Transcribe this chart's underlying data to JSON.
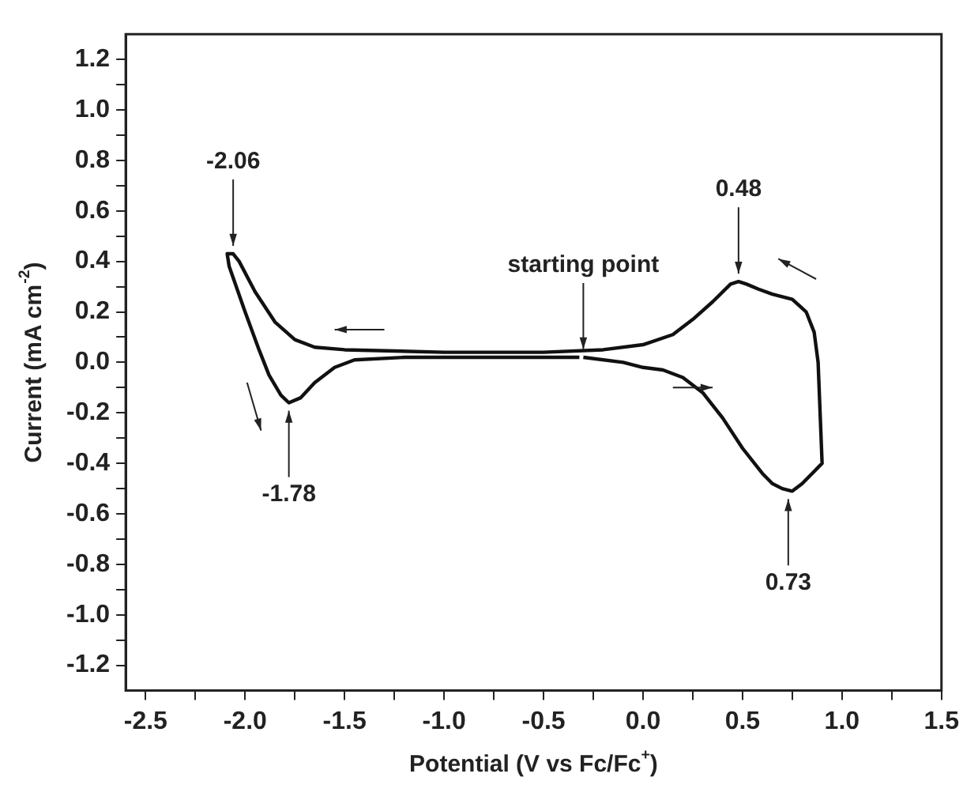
{
  "chart_data": {
    "type": "line",
    "xlabel": "Potential (V vs Fc/Fc$^{+}$)",
    "ylabel": "Current (mA cm$^{-2}$)",
    "xlim": [
      -2.6,
      1.5
    ],
    "xticks": [
      -2.5,
      {
        "value": -2.25,
        "label": null
      },
      {
        "value": -2,
        "label": "-2.0"
      },
      {
        "value": -1.75,
        "label": null
      },
      -1.5,
      {
        "value": -1.25,
        "label": null
      },
      {
        "value": -1,
        "label": "-1.0"
      },
      {
        "value": -0.75,
        "label": null
      },
      -0.5,
      {
        "value": -0.25,
        "label": null
      },
      {
        "value": 0,
        "label": "0.0"
      },
      {
        "value": 0.25,
        "label": null
      },
      0.5,
      {
        "value": 0.75,
        "label": null
      },
      {
        "value": 1,
        "label": "1.0"
      },
      {
        "value": 1.25,
        "label": null
      },
      1.5
    ],
    "ylim": [
      -1.3,
      1.3
    ],
    "yticks": [
      -1.2,
      {
        "value": -1.1,
        "label": null
      },
      {
        "value": -1,
        "label": "-1.0"
      },
      {
        "value": -0.9,
        "label": null
      },
      -0.8,
      {
        "value": -0.7,
        "label": null
      },
      -0.6,
      {
        "value": -0.5,
        "label": null
      },
      -0.4,
      {
        "value": -0.3,
        "label": null
      },
      -0.2,
      {
        "value": -0.1,
        "label": null
      },
      {
        "value": 0,
        "label": "0.0"
      },
      {
        "value": 0.1,
        "label": null
      },
      0.2,
      {
        "value": 0.3,
        "label": null
      },
      0.4,
      {
        "value": 0.5,
        "label": null
      },
      0.6,
      {
        "value": 0.7,
        "label": null
      },
      0.8,
      {
        "value": 0.9,
        "label": null
      },
      {
        "value": 1,
        "label": "1.0"
      },
      {
        "value": 1.1,
        "label": null
      },
      1.2
    ],
    "grid": false,
    "legend": false,
    "marker": "none",
    "line_style": "solid",
    "series": [
      {
        "color": "#111111",
        "x": [
          -0.3,
          -0.1,
          0.0,
          0.1,
          0.2,
          0.3,
          0.4,
          0.5,
          0.6,
          0.65,
          0.7,
          0.75,
          0.8,
          0.85,
          0.9,
          0.89,
          0.88,
          0.86,
          0.82,
          0.75,
          0.65,
          0.58,
          0.52,
          0.48,
          0.44,
          0.35,
          0.25,
          0.15,
          0.0,
          -0.2,
          -0.5,
          -1.0,
          -1.5,
          -1.65,
          -1.75,
          -1.85,
          -1.95,
          -2.03,
          -2.06,
          -2.09,
          -2.08,
          -2.0,
          -1.93,
          -1.88,
          -1.82,
          -1.78,
          -1.72,
          -1.65,
          -1.55,
          -1.45,
          -1.2,
          -0.8,
          -0.5,
          -0.32
        ],
        "values": [
          0.02,
          0.0,
          -0.02,
          -0.03,
          -0.06,
          -0.12,
          -0.22,
          -0.34,
          -0.44,
          -0.48,
          -0.5,
          -0.51,
          -0.48,
          -0.44,
          -0.4,
          -0.2,
          0.0,
          0.12,
          0.2,
          0.25,
          0.27,
          0.29,
          0.31,
          0.32,
          0.31,
          0.24,
          0.17,
          0.11,
          0.07,
          0.05,
          0.04,
          0.04,
          0.05,
          0.06,
          0.09,
          0.16,
          0.28,
          0.4,
          0.43,
          0.43,
          0.38,
          0.2,
          0.05,
          -0.05,
          -0.13,
          -0.16,
          -0.14,
          -0.08,
          -0.02,
          0.01,
          0.02,
          0.02,
          0.02,
          0.02
        ]
      }
    ],
    "annotations": [
      {
        "text": "-2.06",
        "x": -2.06,
        "y": 0.43
      },
      {
        "text": "-1.78",
        "x": -1.78,
        "y": -0.16
      },
      {
        "text": "starting point",
        "x": -0.3,
        "y": 0.02
      },
      {
        "text": "0.48",
        "x": 0.48,
        "y": 0.32
      },
      {
        "text": "0.73",
        "x": 0.73,
        "y": -0.51
      }
    ]
  }
}
